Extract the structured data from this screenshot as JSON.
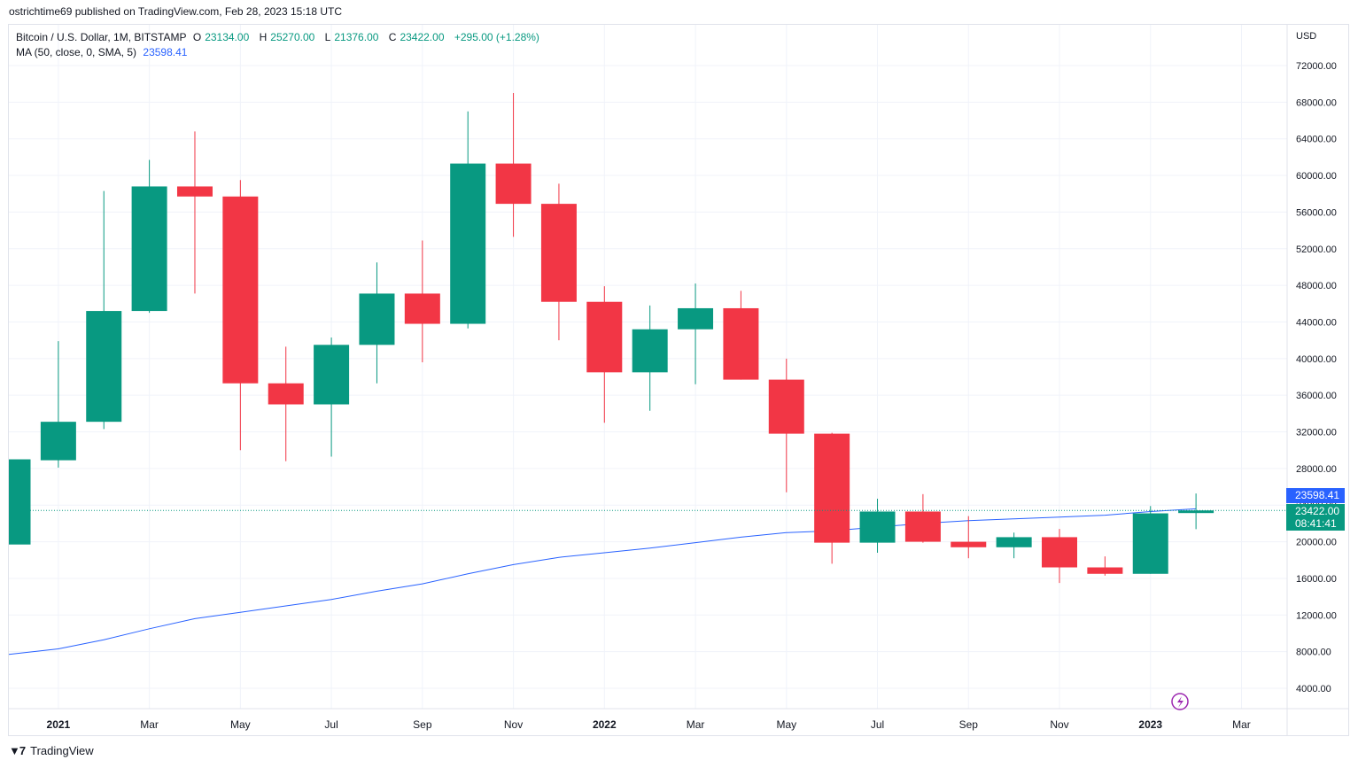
{
  "attribution": "ostrichtime69 published on TradingView.com, Feb 28, 2023 15:18 UTC",
  "footer_brand": "TradingView",
  "legend": {
    "symbol": "Bitcoin / U.S. Dollar, 1M, BITSTAMP",
    "open_label": "O",
    "open": "23134.00",
    "high_label": "H",
    "high": "25270.00",
    "low_label": "L",
    "low": "21376.00",
    "close_label": "C",
    "close": "23422.00",
    "change": "+295.00 (+1.28%)",
    "ma_label": "MA (50, close, 0, SMA, 5)",
    "ma_value": "23598.41"
  },
  "price_tags": {
    "ma": "23598.41",
    "last": "23422.00",
    "countdown": "08:41:41"
  },
  "colors": {
    "up": "#089981",
    "down": "#f23645",
    "ma": "#2962ff",
    "grid": "#f0f3fa"
  },
  "chart_data": {
    "type": "candlestick",
    "currency": "USD",
    "ylim": [
      2000,
      76000
    ],
    "y_ticks": [
      4000,
      8000,
      12000,
      16000,
      20000,
      24000,
      28000,
      32000,
      36000,
      40000,
      44000,
      48000,
      52000,
      56000,
      60000,
      64000,
      68000,
      72000
    ],
    "y_tick_labels": [
      "4000.00",
      "8000.00",
      "12000.00",
      "16000.00",
      "20000.00",
      "24000.00",
      "28000.00",
      "32000.00",
      "36000.00",
      "40000.00",
      "44000.00",
      "48000.00",
      "52000.00",
      "56000.00",
      "60000.00",
      "64000.00",
      "68000.00",
      "72000.00"
    ],
    "x_ticks": [
      {
        "label": "2021",
        "index": 1,
        "bold": true
      },
      {
        "label": "Mar",
        "index": 3,
        "bold": false
      },
      {
        "label": "May",
        "index": 5,
        "bold": false
      },
      {
        "label": "Jul",
        "index": 7,
        "bold": false
      },
      {
        "label": "Sep",
        "index": 9,
        "bold": false
      },
      {
        "label": "Nov",
        "index": 11,
        "bold": false
      },
      {
        "label": "2022",
        "index": 13,
        "bold": true
      },
      {
        "label": "Mar",
        "index": 15,
        "bold": false
      },
      {
        "label": "May",
        "index": 17,
        "bold": false
      },
      {
        "label": "Jul",
        "index": 19,
        "bold": false
      },
      {
        "label": "Sep",
        "index": 21,
        "bold": false
      },
      {
        "label": "Nov",
        "index": 23,
        "bold": false
      },
      {
        "label": "2023",
        "index": 25,
        "bold": true
      },
      {
        "label": "Mar",
        "index": 27,
        "bold": false
      }
    ],
    "candles": [
      {
        "month": "2020-12",
        "open": 19700,
        "high": 29300,
        "low": 19000,
        "close": 29000
      },
      {
        "month": "2021-01",
        "open": 28900,
        "high": 41900,
        "low": 28100,
        "close": 33100
      },
      {
        "month": "2021-02",
        "open": 33100,
        "high": 58300,
        "low": 32300,
        "close": 45200
      },
      {
        "month": "2021-03",
        "open": 45200,
        "high": 61700,
        "low": 45000,
        "close": 58800
      },
      {
        "month": "2021-04",
        "open": 58800,
        "high": 64800,
        "low": 47100,
        "close": 57700
      },
      {
        "month": "2021-05",
        "open": 57700,
        "high": 59500,
        "low": 30000,
        "close": 37300
      },
      {
        "month": "2021-06",
        "open": 37300,
        "high": 41300,
        "low": 28800,
        "close": 35000
      },
      {
        "month": "2021-07",
        "open": 35000,
        "high": 42300,
        "low": 29300,
        "close": 41500
      },
      {
        "month": "2021-08",
        "open": 41500,
        "high": 50500,
        "low": 37300,
        "close": 47100
      },
      {
        "month": "2021-09",
        "open": 47100,
        "high": 52900,
        "low": 39600,
        "close": 43800
      },
      {
        "month": "2021-10",
        "open": 43800,
        "high": 67000,
        "low": 43300,
        "close": 61300
      },
      {
        "month": "2021-11",
        "open": 61300,
        "high": 69000,
        "low": 53300,
        "close": 56900
      },
      {
        "month": "2021-12",
        "open": 56900,
        "high": 59100,
        "low": 42000,
        "close": 46200
      },
      {
        "month": "2022-01",
        "open": 46200,
        "high": 47900,
        "low": 33000,
        "close": 38500
      },
      {
        "month": "2022-02",
        "open": 38500,
        "high": 45800,
        "low": 34300,
        "close": 43200
      },
      {
        "month": "2022-03",
        "open": 43200,
        "high": 48200,
        "low": 37200,
        "close": 45500
      },
      {
        "month": "2022-04",
        "open": 45500,
        "high": 47400,
        "low": 37700,
        "close": 37700
      },
      {
        "month": "2022-05",
        "open": 37700,
        "high": 40000,
        "low": 25400,
        "close": 31800
      },
      {
        "month": "2022-06",
        "open": 31800,
        "high": 31900,
        "low": 17600,
        "close": 19900
      },
      {
        "month": "2022-07",
        "open": 19900,
        "high": 24700,
        "low": 18800,
        "close": 23300
      },
      {
        "month": "2022-08",
        "open": 23300,
        "high": 25200,
        "low": 19900,
        "close": 20000
      },
      {
        "month": "2022-09",
        "open": 20000,
        "high": 22800,
        "low": 18200,
        "close": 19400
      },
      {
        "month": "2022-10",
        "open": 19400,
        "high": 21000,
        "low": 18200,
        "close": 20500
      },
      {
        "month": "2022-11",
        "open": 20500,
        "high": 21400,
        "low": 15500,
        "close": 17200
      },
      {
        "month": "2022-12",
        "open": 17200,
        "high": 18400,
        "low": 16300,
        "close": 16500
      },
      {
        "month": "2023-01",
        "open": 16500,
        "high": 23900,
        "low": 16500,
        "close": 23100
      },
      {
        "month": "2023-02",
        "open": 23134,
        "high": 25270,
        "low": 21376,
        "close": 23422
      }
    ],
    "ma_series": [
      {
        "index": 0,
        "value": 7700
      },
      {
        "index": 1,
        "value": 8300
      },
      {
        "index": 2,
        "value": 9300
      },
      {
        "index": 3,
        "value": 10500
      },
      {
        "index": 4,
        "value": 11600
      },
      {
        "index": 5,
        "value": 12300
      },
      {
        "index": 6,
        "value": 13000
      },
      {
        "index": 7,
        "value": 13700
      },
      {
        "index": 8,
        "value": 14600
      },
      {
        "index": 9,
        "value": 15400
      },
      {
        "index": 10,
        "value": 16500
      },
      {
        "index": 11,
        "value": 17500
      },
      {
        "index": 12,
        "value": 18300
      },
      {
        "index": 13,
        "value": 18800
      },
      {
        "index": 14,
        "value": 19300
      },
      {
        "index": 15,
        "value": 19900
      },
      {
        "index": 16,
        "value": 20500
      },
      {
        "index": 17,
        "value": 21000
      },
      {
        "index": 18,
        "value": 21200
      },
      {
        "index": 19,
        "value": 21600
      },
      {
        "index": 20,
        "value": 22000
      },
      {
        "index": 21,
        "value": 22300
      },
      {
        "index": 22,
        "value": 22500
      },
      {
        "index": 23,
        "value": 22700
      },
      {
        "index": 24,
        "value": 22900
      },
      {
        "index": 25,
        "value": 23300
      },
      {
        "index": 26,
        "value": 23598.41
      }
    ]
  }
}
